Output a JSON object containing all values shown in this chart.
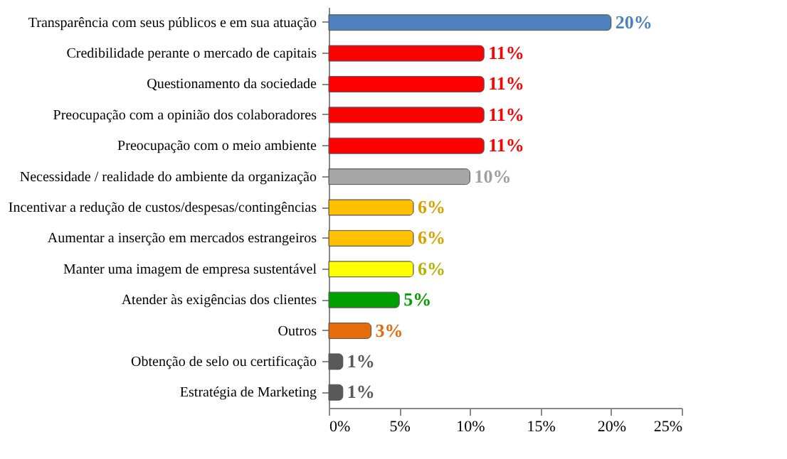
{
  "chart_data": {
    "type": "bar",
    "orientation": "horizontal",
    "categories": [
      "Transparência com seus públicos e em sua atuação",
      "Credibilidade perante o mercado de capitais",
      "Questionamento da sociedade",
      "Preocupação com a opinião dos colaboradores",
      "Preocupação com o meio ambiente",
      "Necessidade / realidade do ambiente da organização",
      "Incentivar a redução de custos/despesas/contingências",
      "Aumentar a inserção em mercados estrangeiros",
      "Manter uma imagem de empresa sustentável",
      "Atender às exigências dos clientes",
      "Outros",
      "Obtenção de selo ou certificação",
      "Estratégia de Marketing"
    ],
    "values": [
      20,
      11,
      11,
      11,
      11,
      10,
      6,
      6,
      6,
      5,
      3,
      1,
      1
    ],
    "colors": [
      "#4f81bd",
      "#ff0000",
      "#ff0000",
      "#ff0000",
      "#ff0000",
      "#a6a6a6",
      "#ffc000",
      "#ffc000",
      "#ffff00",
      "#00a000",
      "#e46c0a",
      "#595959",
      "#595959"
    ],
    "value_labels": [
      "20%",
      "11%",
      "11%",
      "11%",
      "11%",
      "10%",
      "6%",
      "6%",
      "6%",
      "5%",
      "3%",
      "1%",
      "1%"
    ],
    "xlim": [
      0,
      25
    ],
    "xticks": [
      {
        "value": 0,
        "label": "0%"
      },
      {
        "value": 5,
        "label": "5%"
      },
      {
        "value": 10,
        "label": "10%"
      },
      {
        "value": 15,
        "label": "15%"
      },
      {
        "value": 20,
        "label": "20%"
      },
      {
        "value": 25,
        "label": "25%"
      }
    ],
    "grid": false
  }
}
